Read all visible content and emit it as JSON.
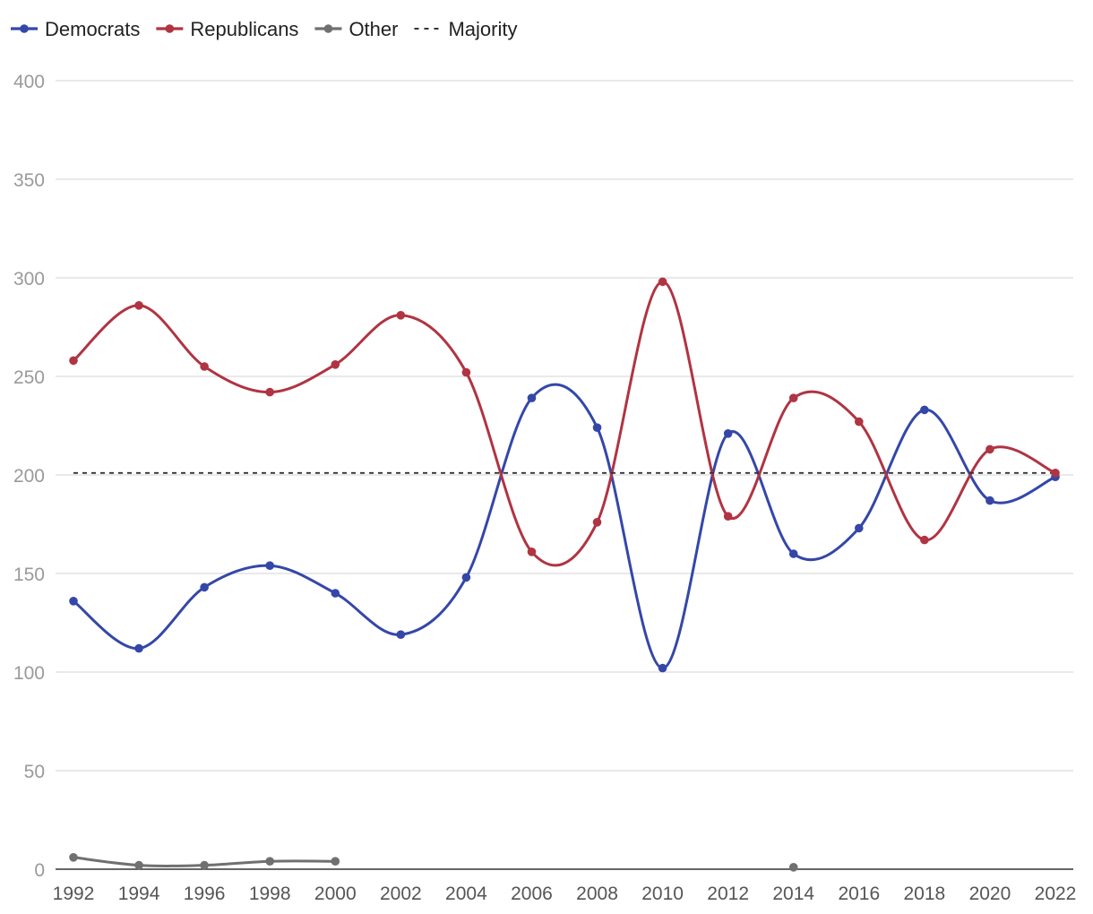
{
  "chart_data": {
    "type": "line",
    "title": "",
    "xlabel": "",
    "ylabel": "",
    "x": [
      1992,
      1994,
      1996,
      1998,
      2000,
      2002,
      2004,
      2006,
      2008,
      2010,
      2012,
      2014,
      2016,
      2018,
      2020,
      2022
    ],
    "ylim": [
      0,
      400
    ],
    "yticks": [
      0,
      50,
      100,
      150,
      200,
      250,
      300,
      350,
      400
    ],
    "grid": true,
    "legend_position": "top-left",
    "series": [
      {
        "name": "Democrats",
        "color": "#3447a8",
        "style": "solid-smooth",
        "values": [
          136,
          112,
          143,
          154,
          140,
          119,
          148,
          239,
          224,
          102,
          221,
          160,
          173,
          233,
          187,
          199
        ]
      },
      {
        "name": "Republicans",
        "color": "#b03442",
        "style": "solid-smooth",
        "values": [
          258,
          286,
          255,
          242,
          256,
          281,
          252,
          161,
          176,
          298,
          179,
          239,
          227,
          167,
          213,
          201
        ]
      },
      {
        "name": "Other",
        "color": "#707070",
        "style": "solid-smooth",
        "values": [
          6,
          2,
          2,
          4,
          4,
          null,
          null,
          null,
          null,
          null,
          null,
          1,
          null,
          null,
          null,
          null
        ]
      },
      {
        "name": "Majority",
        "color": "#333333",
        "style": "dashed",
        "constant": 201
      }
    ]
  }
}
